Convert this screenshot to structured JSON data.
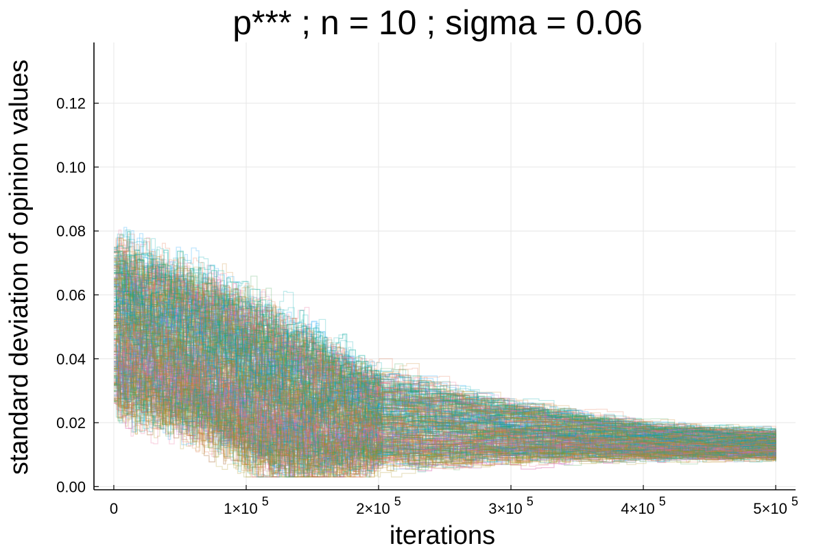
{
  "chart_data": {
    "type": "line",
    "title": "p***  ; n = 10 ; sigma = 0.06",
    "xlabel": "iterations",
    "ylabel": "standard deviation of opinion values",
    "xlim": [
      -15000,
      515000
    ],
    "ylim": [
      -0.001,
      0.139
    ],
    "grid": true,
    "legend": "none",
    "x_ticks": [
      {
        "value": 0,
        "label": "0",
        "exp": ""
      },
      {
        "value": 100000,
        "label": "1×10",
        "exp": "5"
      },
      {
        "value": 200000,
        "label": "2×10",
        "exp": "5"
      },
      {
        "value": 300000,
        "label": "3×10",
        "exp": "5"
      },
      {
        "value": 400000,
        "label": "4×10",
        "exp": "5"
      },
      {
        "value": 500000,
        "label": "5×10",
        "exp": "5"
      }
    ],
    "y_ticks": [
      {
        "value": 0.0,
        "label": "0.00"
      },
      {
        "value": 0.02,
        "label": "0.02"
      },
      {
        "value": 0.04,
        "label": "0.04"
      },
      {
        "value": 0.06,
        "label": "0.06"
      },
      {
        "value": 0.08,
        "label": "0.08"
      },
      {
        "value": 0.1,
        "label": "0.10"
      },
      {
        "value": 0.12,
        "label": "0.12"
      }
    ],
    "series_style": {
      "count": 400,
      "opacity": 0.25,
      "stroke_width": 1.3,
      "palette": [
        "#009AFA",
        "#E36F47",
        "#3EA44E",
        "#C371D2",
        "#AC8E18",
        "#00AAAE",
        "#ED5E93",
        "#C68225",
        "#00A98D",
        "#8E971E"
      ]
    },
    "series_envelope": {
      "x": [
        0,
        20000,
        50000,
        80000,
        100000,
        120000,
        140000,
        160000,
        180000,
        200000,
        250000,
        300000,
        350000,
        400000,
        450000,
        500000
      ],
      "median": [
        0.044,
        0.045,
        0.043,
        0.04,
        0.036,
        0.027,
        0.018,
        0.012,
        0.0095,
        0.0092,
        0.0093,
        0.0094,
        0.0095,
        0.0096,
        0.0097,
        0.0098
      ],
      "upper": [
        0.075,
        0.07,
        0.066,
        0.062,
        0.057,
        0.052,
        0.048,
        0.043,
        0.038,
        0.034,
        0.029,
        0.025,
        0.022,
        0.019,
        0.018,
        0.017
      ],
      "lower": [
        0.026,
        0.024,
        0.02,
        0.014,
        0.009,
        0.006,
        0.005,
        0.0055,
        0.0065,
        0.0075,
        0.0085,
        0.0088,
        0.009,
        0.009,
        0.009,
        0.009
      ]
    }
  }
}
